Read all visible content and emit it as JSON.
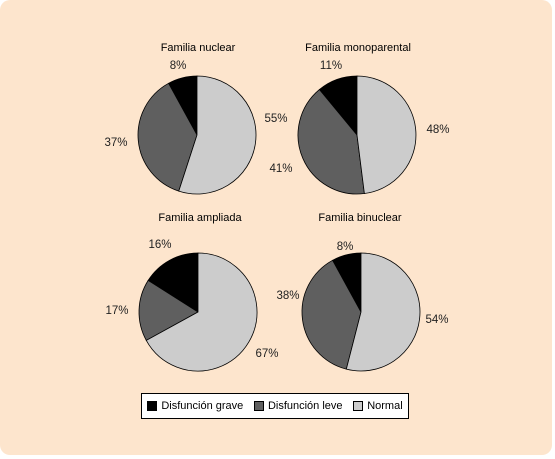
{
  "chart_data": [
    {
      "type": "pie",
      "title": "Familia nuclear",
      "labels": [
        "Disfunción grave",
        "Disfunción leve",
        "Normal"
      ],
      "values": [
        8,
        37,
        55
      ],
      "value_labels": [
        "8%",
        "37%",
        "55%"
      ]
    },
    {
      "type": "pie",
      "title": "Familia monoparental",
      "labels": [
        "Disfunción grave",
        "Disfunción leve",
        "Normal"
      ],
      "values": [
        11,
        41,
        48
      ],
      "value_labels": [
        "11%",
        "41%",
        "48%"
      ]
    },
    {
      "type": "pie",
      "title": "Familia ampliada",
      "labels": [
        "Disfunción grave",
        "Disfunción leve",
        "Normal"
      ],
      "values": [
        16,
        17,
        67
      ],
      "value_labels": [
        "16%",
        "17%",
        "67%"
      ]
    },
    {
      "type": "pie",
      "title": "Familia binuclear",
      "labels": [
        "Disfunción grave",
        "Disfunción leve",
        "Normal"
      ],
      "values": [
        8,
        38,
        54
      ],
      "value_labels": [
        "8%",
        "38%",
        "54%"
      ]
    }
  ],
  "legend": [
    {
      "label": "Disfunción grave",
      "color": "#000000"
    },
    {
      "label": "Disfunción leve",
      "color": "#5f5f5f"
    },
    {
      "label": "Normal",
      "color": "#cccccc"
    }
  ],
  "colors": {
    "background": "#fde5cd",
    "grave": "#000000",
    "leve": "#5f5f5f",
    "normal": "#cccccc"
  }
}
